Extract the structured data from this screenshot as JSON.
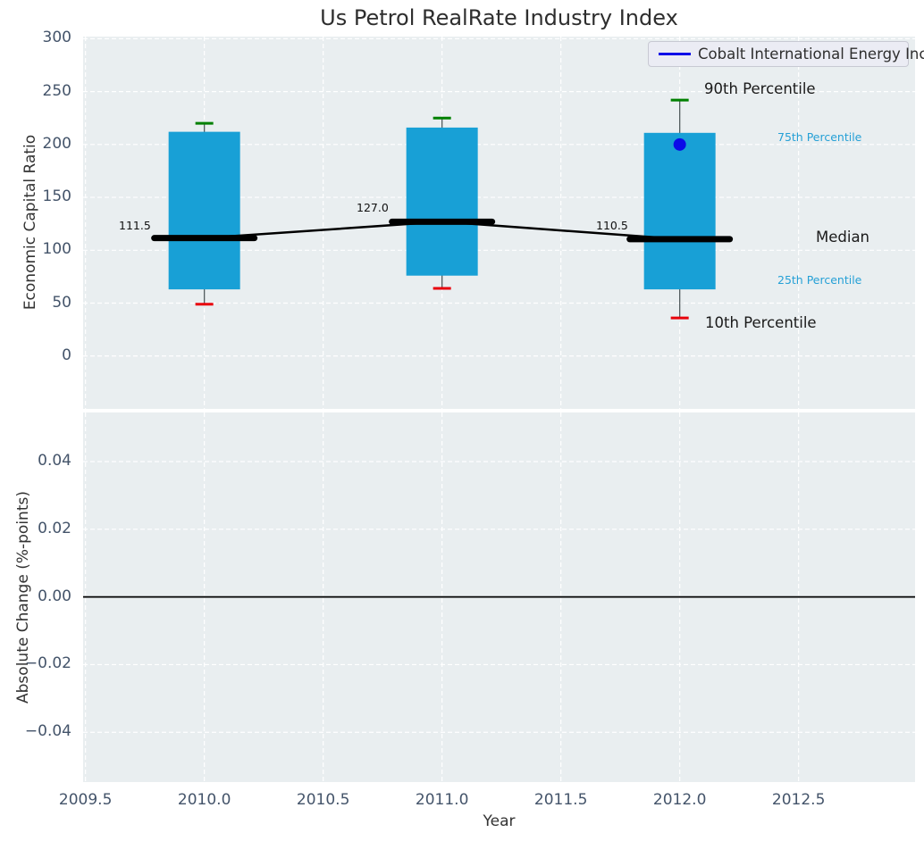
{
  "title": "Us Petrol RealRate Industry Index",
  "legend": {
    "label": "Cobalt International Energy Inc"
  },
  "annotations": {
    "p90_label": "90th Percentile",
    "p75_label": "75th Percentile",
    "median_label": "Median",
    "p25_label": "25th Percentile",
    "p10_label": "10th Percentile"
  },
  "colors": {
    "axes_bg": "#e9eef0",
    "grid": "#ffffff",
    "bar": "#18a0d6",
    "whisker": "#525c5e",
    "p90_cap": "#008000",
    "p10_cap": "#e8000b",
    "median_line": "#000000",
    "company_blue": "#0b0be8",
    "annotation_blue": "#25a0d6",
    "tick_label": "#44546a",
    "zero_line": "#000000"
  },
  "chart_data": [
    {
      "type": "bar",
      "subtype": "percentile-box-bars-with-median-line",
      "title": "Us Petrol RealRate Industry Index",
      "xlabel": "Year",
      "ylabel": "Economic Capital Ratio",
      "x": [
        2010,
        2011,
        2012
      ],
      "series": [
        {
          "role": "p90",
          "name": "90th Percentile",
          "values": [
            220,
            225,
            242
          ]
        },
        {
          "role": "p75",
          "name": "75th Percentile",
          "values": [
            212,
            216,
            211
          ]
        },
        {
          "role": "median",
          "name": "Median",
          "values": [
            111.5,
            127.0,
            110.5
          ]
        },
        {
          "role": "p25",
          "name": "25th Percentile",
          "values": [
            63,
            76,
            63
          ]
        },
        {
          "role": "p10",
          "name": "10th Percentile",
          "values": [
            49,
            64,
            36
          ]
        },
        {
          "role": "company",
          "name": "Cobalt International Energy Inc",
          "values": [
            null,
            null,
            200
          ]
        }
      ],
      "median_labels": [
        "111.5",
        "127.0",
        "110.5"
      ],
      "xlim": [
        2009.49,
        2012.99
      ],
      "ylim": [
        -50,
        302
      ],
      "xticks": {
        "values": [
          2009.5,
          2010.0,
          2010.5,
          2011.0,
          2011.5,
          2012.0,
          2012.5
        ],
        "labels": [
          "2009.5",
          "2010.0",
          "2010.5",
          "2011.0",
          "2011.5",
          "2012.0",
          "2012.5"
        ]
      },
      "yticks": {
        "values": [
          300,
          250,
          200,
          150,
          100,
          50,
          0
        ],
        "labels": [
          "300",
          "250",
          "200",
          "150",
          "100",
          "50",
          "0"
        ]
      },
      "grid": true,
      "legend_position": "upper right"
    },
    {
      "type": "line",
      "title": "",
      "xlabel": "Year",
      "ylabel": "Absolute Change (%-points)",
      "series": [],
      "zero_line": 0.0,
      "xlim": [
        2009.49,
        2012.99
      ],
      "ylim": [
        -0.0547,
        0.0545
      ],
      "yticks": {
        "values": [
          0.04,
          0.02,
          0.0,
          -0.02,
          -0.04
        ],
        "labels": [
          "0.04",
          "0.02",
          "0.00",
          "−0.02",
          "−0.04"
        ]
      },
      "grid": true
    }
  ]
}
